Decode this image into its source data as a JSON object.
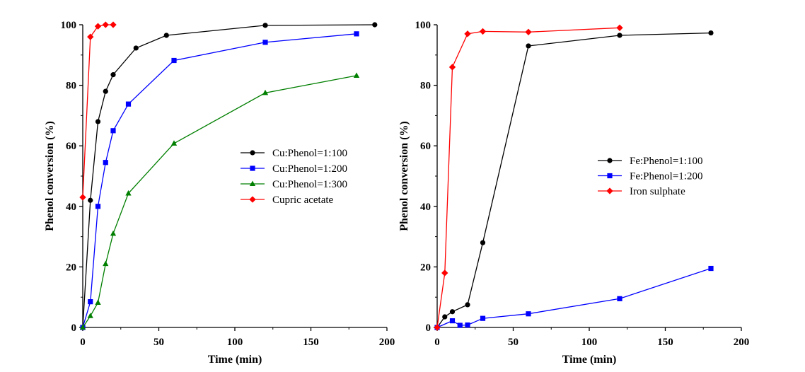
{
  "chart_data": [
    {
      "type": "line",
      "xlabel": "Time (min)",
      "ylabel": "Phenol conversion (%)",
      "xlim": [
        0,
        200
      ],
      "ylim": [
        0,
        100
      ],
      "xticks": [
        0,
        50,
        100,
        150,
        200
      ],
      "yticks": [
        0,
        20,
        40,
        60,
        80,
        100
      ],
      "grid": false,
      "legend_position": "center-right",
      "series": [
        {
          "name": "Cu:Phenol=1:100",
          "color": "#000000",
          "marker": "circle",
          "points": [
            [
              0,
              0
            ],
            [
              5,
              42
            ],
            [
              10,
              68
            ],
            [
              15,
              78
            ],
            [
              20,
              83.5
            ],
            [
              35,
              92.3
            ],
            [
              55,
              96.5
            ],
            [
              120,
              99.8
            ],
            [
              192,
              100
            ]
          ]
        },
        {
          "name": "Cu:Phenol=1:200",
          "color": "#0000ff",
          "marker": "square",
          "points": [
            [
              0,
              0
            ],
            [
              5,
              8.5
            ],
            [
              10,
              40
            ],
            [
              15,
              54.5
            ],
            [
              20,
              65
            ],
            [
              30,
              73.8
            ],
            [
              60,
              88.2
            ],
            [
              120,
              94.2
            ],
            [
              180,
              97
            ]
          ]
        },
        {
          "name": "Cu:Phenol=1:300",
          "color": "#007f00",
          "marker": "triangle",
          "points": [
            [
              0,
              0
            ],
            [
              5,
              3.8
            ],
            [
              10,
              8.2
            ],
            [
              15,
              21
            ],
            [
              20,
              31
            ],
            [
              30,
              44.3
            ],
            [
              60,
              60.8
            ],
            [
              120,
              77.5
            ],
            [
              180,
              83.2
            ]
          ]
        },
        {
          "name": "Cupric acetate",
          "color": "#ff0000",
          "marker": "diamond",
          "points": [
            [
              0,
              43
            ],
            [
              5,
              96
            ],
            [
              10,
              99.5
            ],
            [
              15,
              100
            ],
            [
              20,
              100
            ]
          ]
        }
      ]
    },
    {
      "type": "line",
      "xlabel": "Time (min)",
      "ylabel": "Phenol conversion (%)",
      "xlim": [
        0,
        200
      ],
      "ylim": [
        0,
        100
      ],
      "xticks": [
        0,
        50,
        100,
        150,
        200
      ],
      "yticks": [
        0,
        20,
        40,
        60,
        80,
        100
      ],
      "grid": false,
      "legend_position": "center-right",
      "series": [
        {
          "name": "Fe:Phenol=1:100",
          "color": "#000000",
          "marker": "circle",
          "points": [
            [
              0,
              0
            ],
            [
              5,
              3.5
            ],
            [
              10,
              5.2
            ],
            [
              20,
              7.5
            ],
            [
              30,
              28
            ],
            [
              60,
              93
            ],
            [
              120,
              96.5
            ],
            [
              180,
              97.3
            ]
          ]
        },
        {
          "name": "Fe:Phenol=1:200",
          "color": "#0000ff",
          "marker": "square",
          "points": [
            [
              0,
              0
            ],
            [
              10,
              2.2
            ],
            [
              15,
              0.7
            ],
            [
              20,
              0.8
            ],
            [
              30,
              3
            ],
            [
              60,
              4.5
            ],
            [
              120,
              9.5
            ],
            [
              180,
              19.5
            ]
          ]
        },
        {
          "name": "Iron sulphate",
          "color": "#ff0000",
          "marker": "diamond",
          "points": [
            [
              0,
              0
            ],
            [
              5,
              18
            ],
            [
              10,
              86
            ],
            [
              20,
              97
            ],
            [
              30,
              97.8
            ],
            [
              60,
              97.6
            ],
            [
              120,
              99
            ]
          ]
        }
      ]
    }
  ]
}
